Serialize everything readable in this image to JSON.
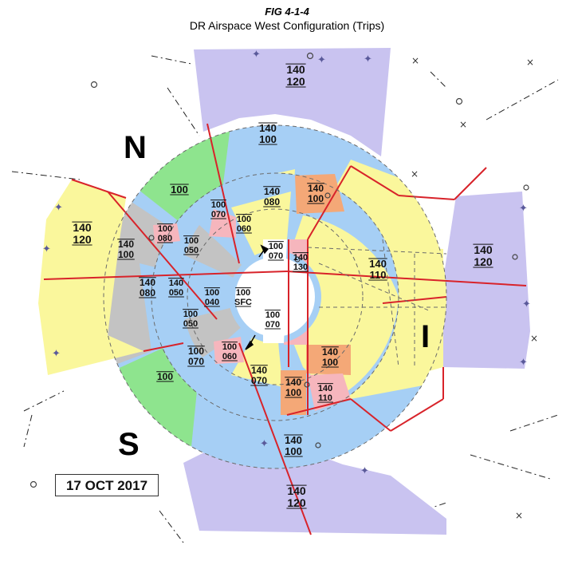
{
  "figure": {
    "number": "FIG 4-1-4",
    "title": "DR Airspace West Configuration (Trips)"
  },
  "compass": {
    "north": "N",
    "south": "S",
    "east": "I"
  },
  "date": "17 OCT 2017",
  "colors": {
    "purple": "#c9c3f0",
    "blue": "#a6cff5",
    "green": "#8ee48e",
    "gray": "#c3c3c3",
    "yellow": "#faf79c",
    "orange": "#f4a877",
    "pink": "#f6b6bd",
    "white": "#ffffff",
    "boundary": "#d8232a"
  },
  "sector_labels": [
    {
      "top": "140",
      "bottom": "120",
      "region": "purple-north"
    },
    {
      "top": "140",
      "bottom": "100",
      "region": "blue-north"
    },
    {
      "top": "100",
      "bottom": "",
      "region": "green-north",
      "single": true
    },
    {
      "top": "140",
      "bottom": "080",
      "region": "yellow-north"
    },
    {
      "top": "140",
      "bottom": "100",
      "region": "orange-north"
    },
    {
      "top": "100",
      "bottom": "070",
      "region": "blue-mid-north"
    },
    {
      "top": "100",
      "bottom": "060",
      "region": "pink-north"
    },
    {
      "top": "100",
      "bottom": "080",
      "region": "pink-nw"
    },
    {
      "top": "100",
      "bottom": "050",
      "region": "gray-inner-nw"
    },
    {
      "top": "140",
      "bottom": "120",
      "region": "yellow-west"
    },
    {
      "top": "140",
      "bottom": "100",
      "region": "gray-west"
    },
    {
      "top": "140",
      "bottom": "080",
      "region": "blue-west"
    },
    {
      "top": "140",
      "bottom": "050",
      "region": "blue-west-inner"
    },
    {
      "top": "100",
      "bottom": "040",
      "region": "blue-center"
    },
    {
      "top": "100",
      "bottom": "070",
      "region": "white-north"
    },
    {
      "top": "140",
      "bottom": "130",
      "region": "pink-east"
    },
    {
      "top": "100",
      "bottom": "SFC",
      "region": "center"
    },
    {
      "top": "100",
      "bottom": "050",
      "region": "gray-sw"
    },
    {
      "top": "100",
      "bottom": "070",
      "region": "white-south"
    },
    {
      "top": "140",
      "bottom": "110",
      "region": "yellow-east"
    },
    {
      "top": "140",
      "bottom": "120",
      "region": "purple-east"
    },
    {
      "top": "100",
      "bottom": "070",
      "region": "blue-mid-south"
    },
    {
      "top": "100",
      "bottom": "060",
      "region": "pink-south"
    },
    {
      "top": "100",
      "bottom": "",
      "region": "green-south",
      "single": true
    },
    {
      "top": "140",
      "bottom": "070",
      "region": "yellow-south"
    },
    {
      "top": "140",
      "bottom": "100",
      "region": "orange-south"
    },
    {
      "top": "140",
      "bottom": "100",
      "region": "orange-se"
    },
    {
      "top": "140",
      "bottom": "110",
      "region": "pink-se"
    },
    {
      "top": "140",
      "bottom": "100",
      "region": "blue-south"
    },
    {
      "top": "140",
      "bottom": "120",
      "region": "purple-south"
    }
  ]
}
